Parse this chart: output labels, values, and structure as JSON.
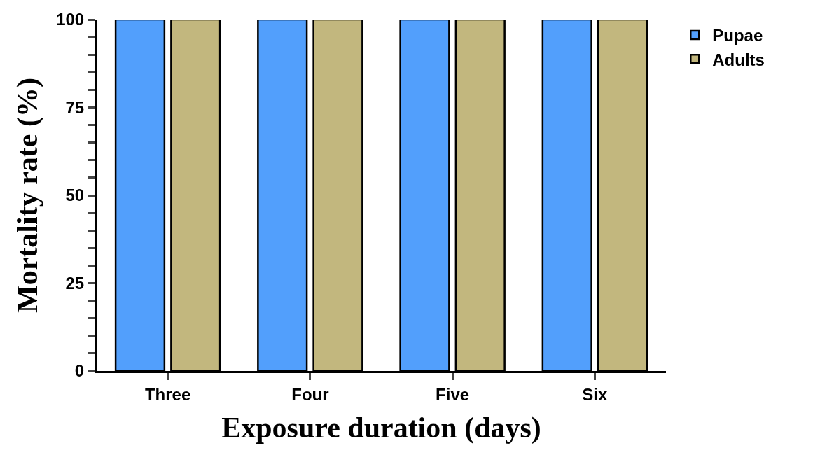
{
  "chart_data": {
    "type": "bar",
    "xlabel": "Exposure duration (days)",
    "ylabel": "Mortality rate (%)",
    "categories": [
      "Three",
      "Four",
      "Five",
      "Six"
    ],
    "series": [
      {
        "name": "Pupae",
        "color": "#529ffc",
        "values": [
          100,
          100,
          100,
          100
        ]
      },
      {
        "name": "Adults",
        "color": "#c2b77e",
        "values": [
          100,
          100,
          100,
          100
        ]
      }
    ],
    "ylim": [
      0,
      100
    ],
    "yticks": [
      0,
      {
        "value": 5,
        "label": null
      },
      {
        "value": 10,
        "label": null
      },
      {
        "value": 15,
        "label": null
      },
      {
        "value": 20,
        "label": null
      },
      25,
      {
        "value": 30,
        "label": null
      },
      {
        "value": 35,
        "label": null
      },
      {
        "value": 40,
        "label": null
      },
      {
        "value": 45,
        "label": null
      },
      50,
      {
        "value": 55,
        "label": null
      },
      {
        "value": 60,
        "label": null
      },
      {
        "value": 65,
        "label": null
      },
      {
        "value": 70,
        "label": null
      },
      75,
      {
        "value": 80,
        "label": null
      },
      {
        "value": 85,
        "label": null
      },
      {
        "value": 90,
        "label": null
      },
      {
        "value": 95,
        "label": null
      },
      100
    ],
    "grid": false,
    "legend": "top right"
  }
}
